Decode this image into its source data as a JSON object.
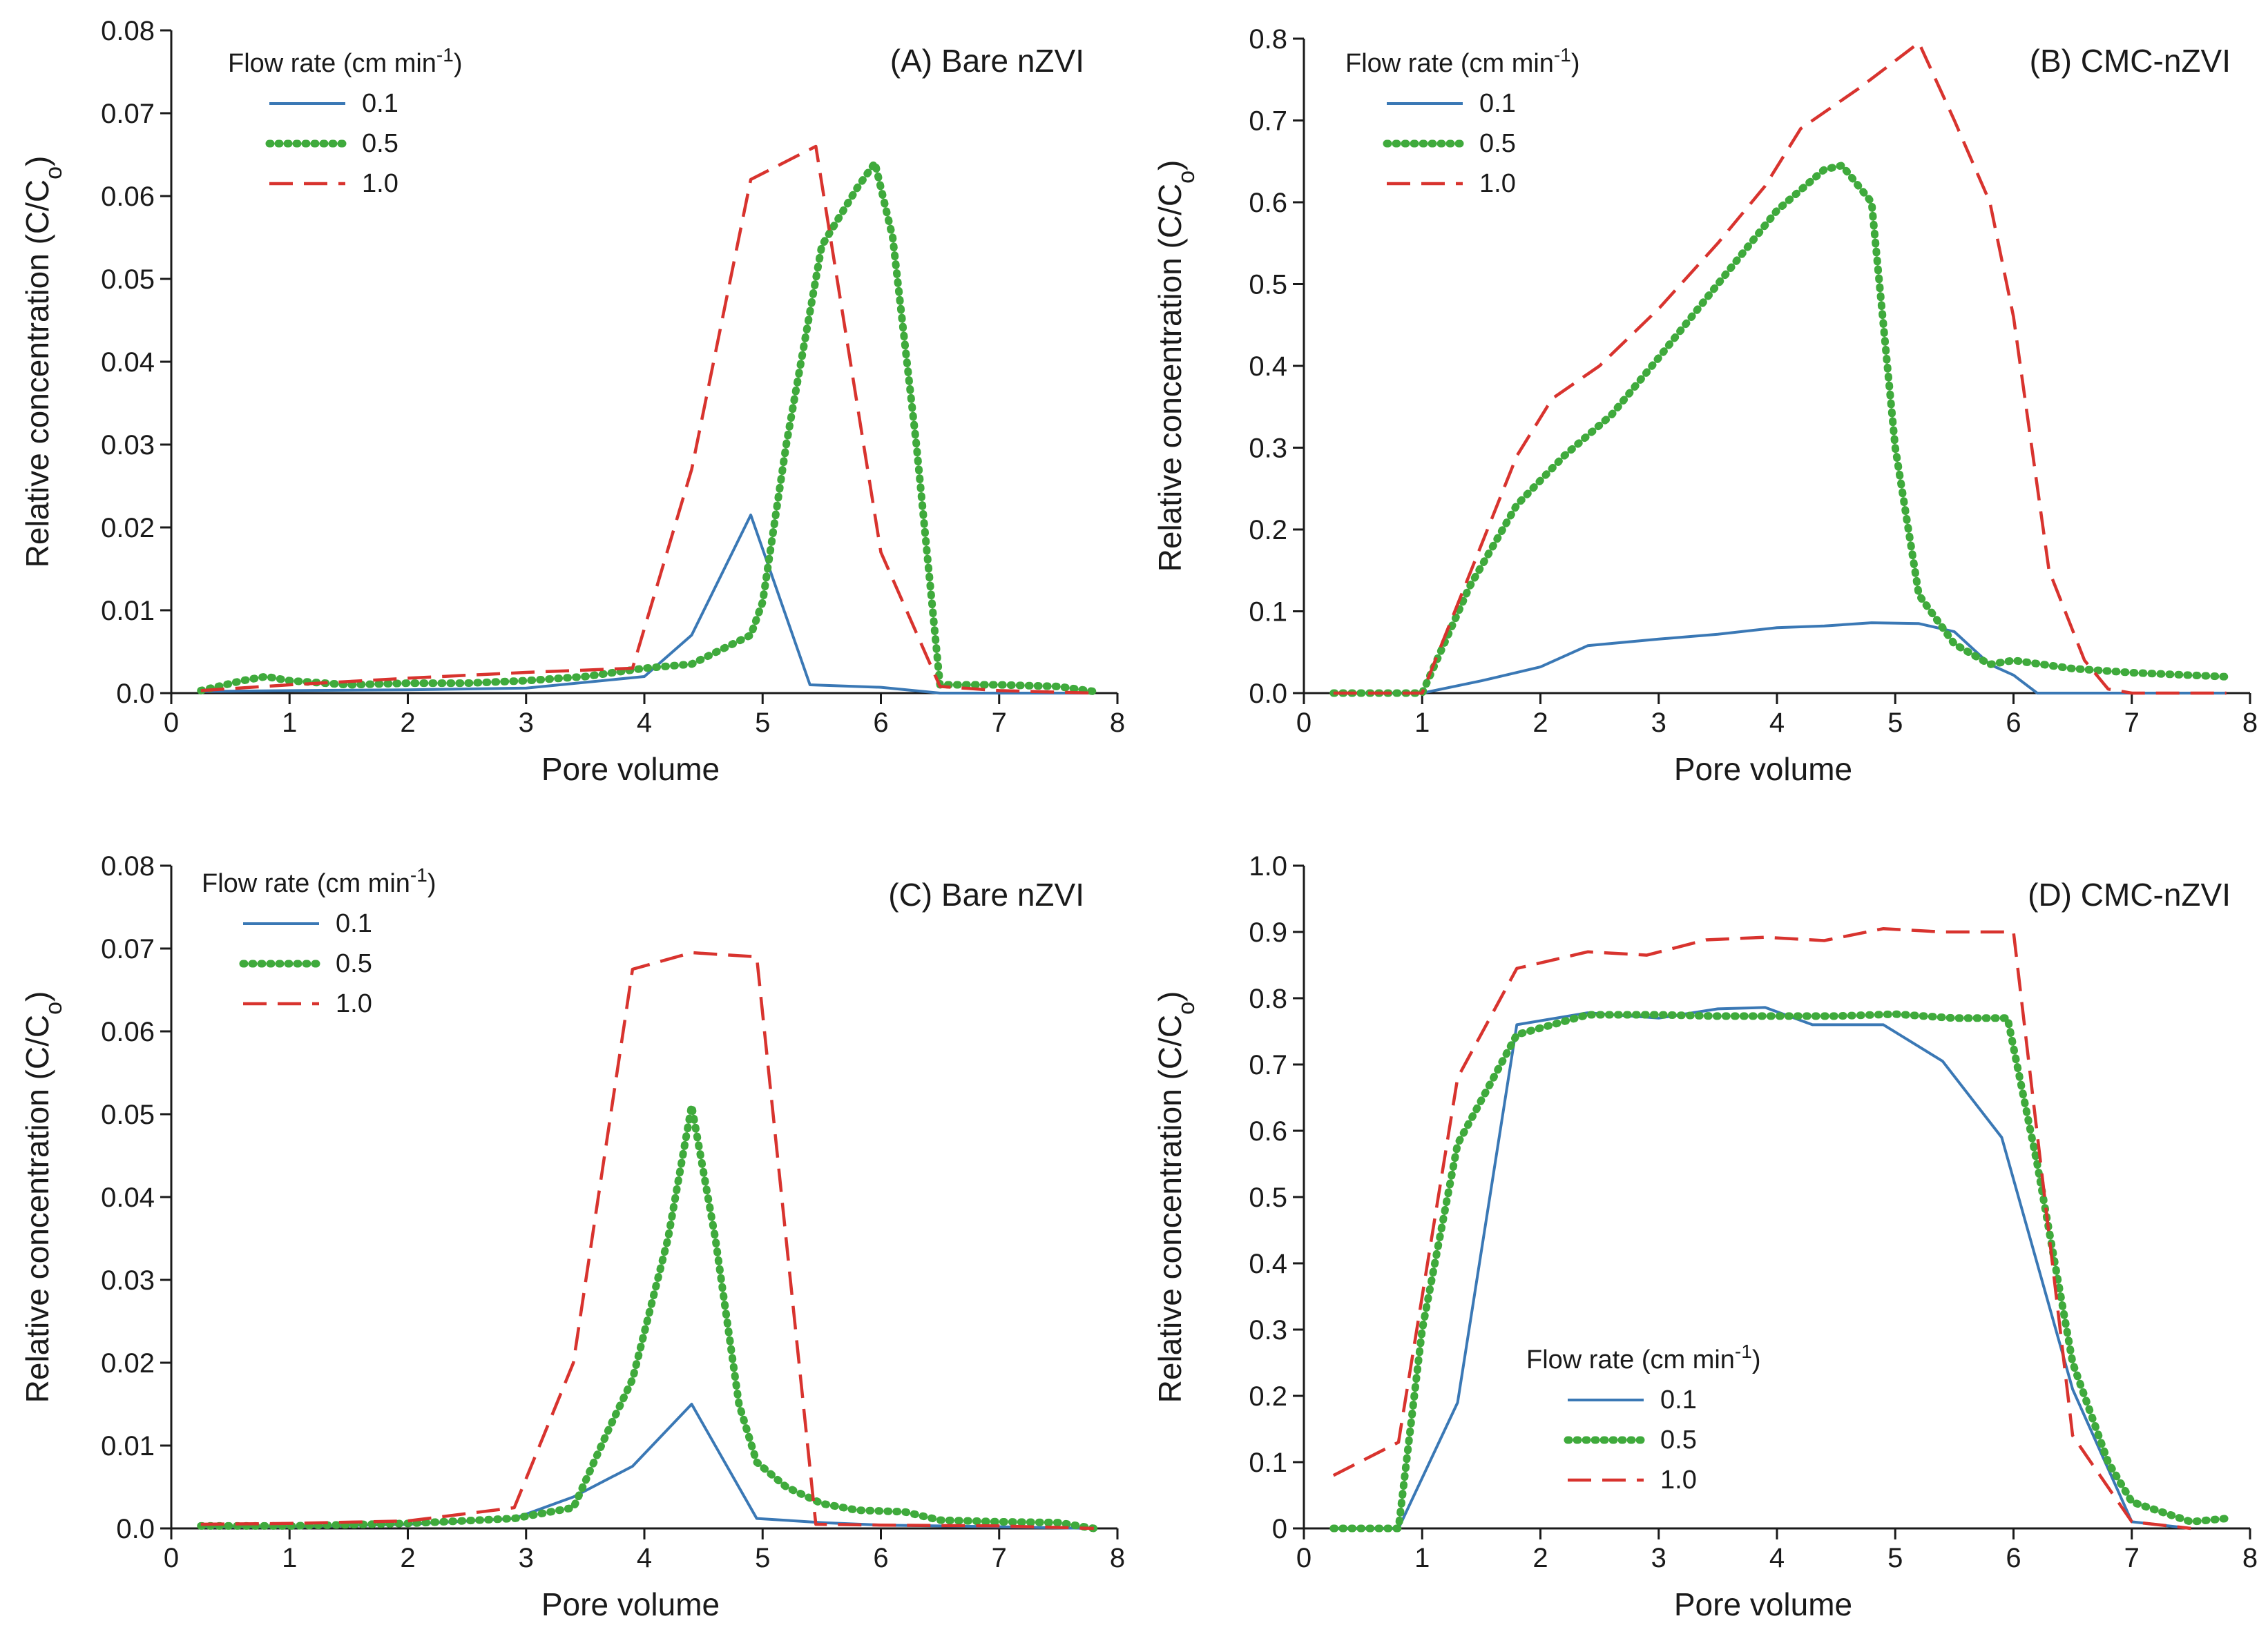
{
  "chart_data": [
    {
      "id": "A",
      "type": "line",
      "title": "(A) Bare nZVI",
      "xlabel": "Pore volume",
      "ylabel": "Relative concentration (C/C",
      "ylabel_sub": "o",
      "ylabel_close": ")",
      "xlim": [
        0,
        8
      ],
      "ylim": [
        0,
        0.08
      ],
      "xticks": [
        "0",
        "1",
        "2",
        "3",
        "4",
        "5",
        "6",
        "7",
        "8"
      ],
      "yticks": [
        "0.0",
        "0.01",
        "0.02",
        "0.03",
        "0.04",
        "0.05",
        "0.06",
        "0.07",
        "0.08"
      ],
      "legend": {
        "title": "Flow rate (cm min",
        "title_sup": "-1",
        "title_close": ")",
        "placement": "top-left"
      },
      "series": [
        {
          "name": "0.1",
          "color": "#3a78b5",
          "style": "solid",
          "x": [
            0.25,
            1.0,
            2.0,
            3.0,
            4.0,
            4.4,
            4.9,
            5.4,
            6.0,
            6.5,
            7.0,
            7.8
          ],
          "y": [
            0.0002,
            0.0003,
            0.0004,
            0.0006,
            0.002,
            0.007,
            0.0215,
            0.001,
            0.0007,
            0.0,
            0.0,
            0.0
          ]
        },
        {
          "name": "0.5",
          "color": "#3faa3c",
          "style": "dotted",
          "x": [
            0.25,
            0.6,
            0.8,
            1.0,
            1.5,
            2.0,
            2.5,
            3.0,
            3.5,
            4.0,
            4.4,
            4.9,
            5.0,
            5.2,
            5.5,
            5.8,
            5.95,
            6.1,
            6.3,
            6.5,
            7.0,
            7.5,
            7.8
          ],
          "y": [
            0.0003,
            0.0015,
            0.002,
            0.0015,
            0.001,
            0.0012,
            0.0012,
            0.0015,
            0.002,
            0.003,
            0.0035,
            0.007,
            0.011,
            0.03,
            0.054,
            0.061,
            0.064,
            0.055,
            0.03,
            0.001,
            0.001,
            0.0008,
            0.0002
          ]
        },
        {
          "name": "1.0",
          "color": "#d8332e",
          "style": "dashed",
          "x": [
            0.25,
            1.0,
            2.0,
            3.0,
            3.9,
            4.4,
            4.9,
            5.45,
            6.0,
            6.5,
            7.0,
            7.8
          ],
          "y": [
            0.0003,
            0.001,
            0.0018,
            0.0025,
            0.003,
            0.027,
            0.062,
            0.066,
            0.017,
            0.0008,
            0.0003,
            0.0
          ]
        }
      ]
    },
    {
      "id": "B",
      "type": "line",
      "title": "(B) CMC-nZVI",
      "xlabel": "Pore volume",
      "ylabel": "Relative concentration (C/C",
      "ylabel_sub": "o",
      "ylabel_close": ")",
      "xlim": [
        0,
        8
      ],
      "ylim": [
        0,
        0.8
      ],
      "xticks": [
        "0",
        "1",
        "2",
        "3",
        "4",
        "5",
        "6",
        "7",
        "8"
      ],
      "yticks": [
        "0.0",
        "0.1",
        "0.2",
        "0.3",
        "0.4",
        "0.5",
        "0.6",
        "0.7",
        "0.8"
      ],
      "legend": {
        "title": "Flow rate (cm min",
        "title_sup": "-1",
        "title_close": ")",
        "placement": "top-left"
      },
      "series": [
        {
          "name": "0.1",
          "color": "#3a78b5",
          "style": "solid",
          "x": [
            0.25,
            1.0,
            1.5,
            2.0,
            2.4,
            3.0,
            3.5,
            4.0,
            4.4,
            4.8,
            5.2,
            5.5,
            5.8,
            6.0,
            6.2,
            6.5,
            7.0,
            7.8
          ],
          "y": [
            0.0,
            0.0,
            0.015,
            0.032,
            0.058,
            0.066,
            0.072,
            0.08,
            0.082,
            0.086,
            0.085,
            0.075,
            0.035,
            0.022,
            0.0,
            0.0,
            0.0,
            0.0
          ]
        },
        {
          "name": "0.5",
          "color": "#3faa3c",
          "style": "dotted",
          "x": [
            0.25,
            1.0,
            1.4,
            1.8,
            2.2,
            2.6,
            3.0,
            3.5,
            4.0,
            4.4,
            4.55,
            4.8,
            5.0,
            5.2,
            5.5,
            5.8,
            6.0,
            6.5,
            7.0,
            7.8
          ],
          "y": [
            0.0,
            0.0,
            0.13,
            0.23,
            0.29,
            0.34,
            0.41,
            0.5,
            0.59,
            0.64,
            0.645,
            0.6,
            0.3,
            0.12,
            0.06,
            0.035,
            0.04,
            0.03,
            0.025,
            0.02
          ]
        },
        {
          "name": "1.0",
          "color": "#d8332e",
          "style": "dashed",
          "x": [
            0.25,
            1.0,
            1.8,
            2.1,
            2.5,
            3.0,
            3.5,
            3.9,
            4.2,
            4.7,
            5.2,
            5.5,
            5.8,
            6.0,
            6.3,
            6.6,
            6.8,
            7.0,
            7.8
          ],
          "y": [
            0.0,
            0.0,
            0.29,
            0.36,
            0.4,
            0.47,
            0.55,
            0.62,
            0.69,
            0.74,
            0.795,
            0.7,
            0.6,
            0.46,
            0.15,
            0.04,
            0.005,
            0.0,
            0.0
          ]
        }
      ]
    },
    {
      "id": "C",
      "type": "line",
      "title": "(C) Bare nZVI",
      "xlabel": "Pore volume",
      "ylabel": "Relative concentration (C/C",
      "ylabel_sub": "o",
      "ylabel_close": ")",
      "xlim": [
        0,
        8
      ],
      "ylim": [
        0,
        0.08
      ],
      "xticks": [
        "0",
        "1",
        "2",
        "3",
        "4",
        "5",
        "6",
        "7",
        "8"
      ],
      "yticks": [
        "0.0",
        "0.01",
        "0.02",
        "0.03",
        "0.04",
        "0.05",
        "0.06",
        "0.07",
        "0.08"
      ],
      "legend": {
        "title": "Flow rate (cm min",
        "title_sup": "-1",
        "title_close": ")",
        "placement": "top-left"
      },
      "series": [
        {
          "name": "0.1",
          "color": "#3a78b5",
          "style": "solid",
          "x": [
            0.25,
            1.0,
            2.0,
            2.9,
            3.4,
            3.9,
            4.4,
            4.95,
            5.5,
            6.0,
            7.0,
            7.8
          ],
          "y": [
            0.0002,
            0.0002,
            0.0005,
            0.0012,
            0.0038,
            0.0075,
            0.015,
            0.0012,
            0.0007,
            0.0004,
            0.0002,
            0.0
          ]
        },
        {
          "name": "0.5",
          "color": "#3faa3c",
          "style": "dotted",
          "x": [
            0.25,
            1.0,
            2.0,
            2.9,
            3.4,
            3.7,
            3.9,
            4.2,
            4.4,
            4.6,
            4.8,
            4.95,
            5.2,
            5.5,
            5.8,
            6.2,
            6.5,
            7.0,
            7.5,
            7.8
          ],
          "y": [
            0.0003,
            0.0003,
            0.0006,
            0.0012,
            0.0025,
            0.012,
            0.018,
            0.035,
            0.051,
            0.035,
            0.015,
            0.008,
            0.005,
            0.003,
            0.0022,
            0.002,
            0.001,
            0.0008,
            0.0007,
            0.0
          ]
        },
        {
          "name": "1.0",
          "color": "#d8332e",
          "style": "dashed",
          "x": [
            0.25,
            1.0,
            2.0,
            2.9,
            3.4,
            3.9,
            4.4,
            4.95,
            5.45,
            6.0,
            7.0,
            7.8
          ],
          "y": [
            0.0005,
            0.0006,
            0.0009,
            0.0025,
            0.02,
            0.0675,
            0.0695,
            0.069,
            0.0005,
            0.0004,
            0.0003,
            0.0
          ]
        }
      ]
    },
    {
      "id": "D",
      "type": "line",
      "title": "(D) CMC-nZVI",
      "xlabel": "Pore volume",
      "ylabel": "Relative concentration (C/C",
      "ylabel_sub": "o",
      "ylabel_close": ")",
      "xlim": [
        0,
        8
      ],
      "ylim": [
        0,
        1.0
      ],
      "xticks": [
        "0",
        "1",
        "2",
        "3",
        "4",
        "5",
        "6",
        "7",
        "8"
      ],
      "yticks": [
        "0",
        "0.1",
        "0.2",
        "0.3",
        "0.4",
        "0.5",
        "0.6",
        "0.7",
        "0.8",
        "0.9",
        "1.0"
      ],
      "legend": {
        "title": "Flow rate (cm min",
        "title_sup": "-1",
        "title_close": ")",
        "placement": "bottom-left"
      },
      "series": [
        {
          "name": "0.1",
          "color": "#3a78b5",
          "style": "solid",
          "x": [
            0.25,
            0.8,
            1.3,
            1.8,
            2.4,
            3.0,
            3.5,
            3.9,
            4.3,
            4.9,
            5.4,
            5.9,
            6.5,
            7.0,
            7.5
          ],
          "y": [
            0.0,
            0.0,
            0.19,
            0.76,
            0.778,
            0.77,
            0.784,
            0.786,
            0.76,
            0.76,
            0.705,
            0.59,
            0.21,
            0.01,
            0.0
          ]
        },
        {
          "name": "0.5",
          "color": "#3faa3c",
          "style": "dotted",
          "x": [
            0.25,
            0.8,
            1.0,
            1.3,
            1.8,
            2.4,
            3.0,
            3.5,
            4.0,
            4.5,
            5.0,
            5.5,
            5.95,
            6.2,
            6.5,
            6.8,
            7.0,
            7.5,
            7.8
          ],
          "y": [
            0.0,
            0.0,
            0.3,
            0.58,
            0.745,
            0.775,
            0.775,
            0.773,
            0.773,
            0.773,
            0.776,
            0.77,
            0.77,
            0.55,
            0.25,
            0.1,
            0.04,
            0.01,
            0.015
          ]
        },
        {
          "name": "1.0",
          "color": "#d8332e",
          "style": "dashed",
          "x": [
            0.25,
            0.8,
            1.3,
            1.8,
            2.4,
            2.9,
            3.4,
            3.9,
            4.4,
            4.9,
            5.4,
            6.0,
            6.5,
            7.0,
            7.5
          ],
          "y": [
            0.08,
            0.13,
            0.68,
            0.845,
            0.87,
            0.865,
            0.888,
            0.892,
            0.887,
            0.905,
            0.9,
            0.9,
            0.14,
            0.01,
            0.0
          ]
        }
      ]
    }
  ]
}
